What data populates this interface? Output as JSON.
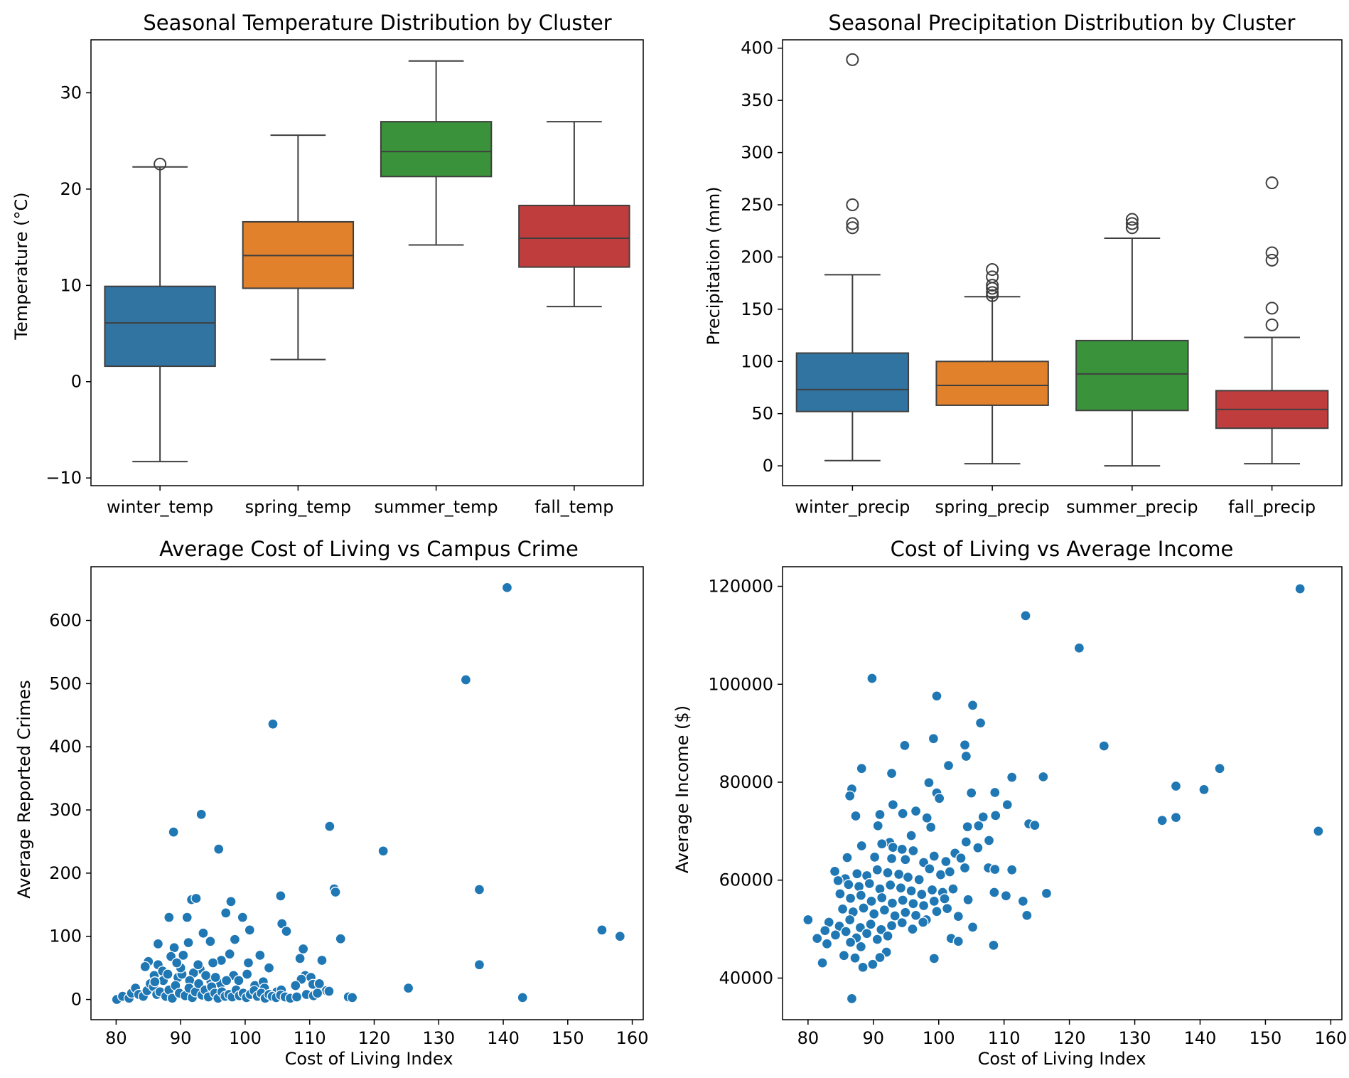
{
  "chart_data": [
    {
      "type": "box",
      "title": "Seasonal Temperature Distribution by Cluster",
      "xlabel": "",
      "ylabel": "Temperature (°C)",
      "ylim": [
        -10.8,
        35.5
      ],
      "yticks": [
        -10,
        0,
        10,
        20,
        30
      ],
      "ytick_labels": [
        "−10",
        "0",
        "10",
        "20",
        "30"
      ],
      "categories": [
        "winter_temp",
        "spring_temp",
        "summer_temp",
        "fall_temp"
      ],
      "colors": [
        "#3274a1",
        "#e1812c",
        "#3a923a",
        "#c03d3e"
      ],
      "boxes": [
        {
          "whislo": -8.3,
          "q1": 1.6,
          "med": 6.1,
          "q3": 9.9,
          "whishi": 22.3,
          "fliers": [
            22.6
          ]
        },
        {
          "whislo": 2.3,
          "q1": 9.7,
          "med": 13.1,
          "q3": 16.6,
          "whishi": 25.6,
          "fliers": []
        },
        {
          "whislo": 14.2,
          "q1": 21.3,
          "med": 23.9,
          "q3": 27.0,
          "whishi": 33.3,
          "fliers": []
        },
        {
          "whislo": 7.8,
          "q1": 11.9,
          "med": 14.9,
          "q3": 18.3,
          "whishi": 27.0,
          "fliers": []
        }
      ]
    },
    {
      "type": "box",
      "title": "Seasonal Precipitation Distribution by Cluster",
      "xlabel": "",
      "ylabel": "Precipitation (mm)",
      "ylim": [
        -19,
        408
      ],
      "yticks": [
        0,
        50,
        100,
        150,
        200,
        250,
        300,
        350,
        400
      ],
      "ytick_labels": [
        "0",
        "50",
        "100",
        "150",
        "200",
        "250",
        "300",
        "350",
        "400"
      ],
      "categories": [
        "winter_precip",
        "spring_precip",
        "summer_precip",
        "fall_precip"
      ],
      "colors": [
        "#3274a1",
        "#e1812c",
        "#3a923a",
        "#c03d3e"
      ],
      "boxes": [
        {
          "whislo": 5,
          "q1": 52,
          "med": 73,
          "q3": 108,
          "whishi": 183,
          "fliers": [
            228,
            232,
            250,
            389
          ]
        },
        {
          "whislo": 2,
          "q1": 58,
          "med": 77,
          "q3": 100,
          "whishi": 162,
          "fliers": [
            163,
            166,
            170,
            173,
            181,
            188
          ]
        },
        {
          "whislo": 0,
          "q1": 53,
          "med": 88,
          "q3": 120,
          "whishi": 218,
          "fliers": [
            228,
            232,
            236
          ]
        },
        {
          "whislo": 2,
          "q1": 36,
          "med": 54,
          "q3": 72,
          "whishi": 123,
          "fliers": [
            135,
            151,
            197,
            204,
            271
          ]
        }
      ]
    },
    {
      "type": "scatter",
      "title": "Average Cost of Living vs Campus Crime",
      "xlabel": "Cost of Living Index",
      "ylabel": "Average Reported Crimes",
      "xlim": [
        76.1,
        161.7
      ],
      "ylim": [
        -32,
        685
      ],
      "xticks": [
        80,
        90,
        100,
        110,
        120,
        130,
        140,
        150,
        160
      ],
      "yticks": [
        0,
        100,
        200,
        300,
        400,
        500,
        600
      ],
      "color": "#1f77b4",
      "points": [
        [
          140.6,
          652
        ],
        [
          134.2,
          506
        ],
        [
          104.3,
          436
        ],
        [
          113.1,
          274
        ],
        [
          93.2,
          293
        ],
        [
          88.9,
          265
        ],
        [
          95.9,
          238
        ],
        [
          121.4,
          235
        ],
        [
          136.3,
          174
        ],
        [
          113.8,
          175
        ],
        [
          114.0,
          170
        ],
        [
          105.5,
          164
        ],
        [
          91.7,
          158
        ],
        [
          92.4,
          160
        ],
        [
          97.8,
          155
        ],
        [
          88.2,
          130
        ],
        [
          91.0,
          130
        ],
        [
          99.6,
          130
        ],
        [
          97.0,
          137
        ],
        [
          105.7,
          120
        ],
        [
          100.7,
          110
        ],
        [
          106.4,
          108
        ],
        [
          155.3,
          110
        ],
        [
          158.1,
          100
        ],
        [
          114.8,
          96
        ],
        [
          93.5,
          105
        ],
        [
          94.6,
          92
        ],
        [
          86.5,
          88
        ],
        [
          109.0,
          80
        ],
        [
          89.0,
          82
        ],
        [
          91.2,
          90
        ],
        [
          96.3,
          62
        ],
        [
          100.5,
          58
        ],
        [
          102.3,
          70
        ],
        [
          103.7,
          50
        ],
        [
          108.5,
          65
        ],
        [
          111.9,
          62
        ],
        [
          85.0,
          60
        ],
        [
          86.5,
          55
        ],
        [
          93.0,
          48
        ],
        [
          95.0,
          58
        ],
        [
          136.3,
          55
        ],
        [
          98.4,
          95
        ],
        [
          88.5,
          68
        ],
        [
          90.4,
          70
        ],
        [
          97.6,
          72
        ],
        [
          92.0,
          42
        ],
        [
          98.2,
          38
        ],
        [
          100.3,
          40
        ],
        [
          109.3,
          38
        ],
        [
          108.7,
          32
        ],
        [
          110.2,
          35
        ],
        [
          110.5,
          24
        ],
        [
          107.8,
          22
        ],
        [
          111.5,
          25
        ],
        [
          84.5,
          52
        ],
        [
          85.9,
          38
        ],
        [
          87.2,
          45
        ],
        [
          89.6,
          35
        ],
        [
          91.4,
          30
        ],
        [
          94.7,
          28
        ],
        [
          96.2,
          25
        ],
        [
          99.0,
          30
        ],
        [
          101.5,
          22
        ],
        [
          102.8,
          28
        ],
        [
          103.0,
          18
        ],
        [
          104.9,
          12
        ],
        [
          105.6,
          15
        ],
        [
          112.6,
          14
        ],
        [
          113.0,
          13
        ],
        [
          125.3,
          18
        ],
        [
          116.0,
          4
        ],
        [
          116.6,
          3
        ],
        [
          143.0,
          3
        ],
        [
          80.1,
          0
        ],
        [
          81.0,
          5
        ],
        [
          82.0,
          2
        ],
        [
          82.4,
          10
        ],
        [
          83.0,
          18
        ],
        [
          83.5,
          8
        ],
        [
          84.2,
          5
        ],
        [
          84.8,
          14
        ],
        [
          85.3,
          25
        ],
        [
          85.8,
          20
        ],
        [
          86.3,
          8
        ],
        [
          86.8,
          12
        ],
        [
          87.3,
          30
        ],
        [
          87.7,
          5
        ],
        [
          88.2,
          15
        ],
        [
          88.7,
          2
        ],
        [
          89.2,
          22
        ],
        [
          89.8,
          10
        ],
        [
          90.2,
          40
        ],
        [
          90.7,
          6
        ],
        [
          91.3,
          18
        ],
        [
          91.8,
          3
        ],
        [
          92.3,
          12
        ],
        [
          92.8,
          25
        ],
        [
          93.3,
          7
        ],
        [
          93.8,
          15
        ],
        [
          94.3,
          4
        ],
        [
          94.8,
          20
        ],
        [
          95.3,
          10
        ],
        [
          95.8,
          2
        ],
        [
          96.4,
          12
        ],
        [
          96.9,
          5
        ],
        [
          97.5,
          8
        ],
        [
          98.0,
          4
        ],
        [
          98.6,
          15
        ],
        [
          99.1,
          6
        ],
        [
          99.7,
          10
        ],
        [
          100.2,
          3
        ],
        [
          100.8,
          8
        ],
        [
          101.4,
          14
        ],
        [
          101.9,
          5
        ],
        [
          102.5,
          10
        ],
        [
          103.1,
          2
        ],
        [
          103.7,
          8
        ],
        [
          104.2,
          5
        ],
        [
          104.8,
          3
        ],
        [
          105.5,
          7
        ],
        [
          106.2,
          4
        ],
        [
          107.0,
          2
        ],
        [
          108.0,
          4
        ],
        [
          109.5,
          8
        ],
        [
          110.6,
          6
        ],
        [
          111.2,
          10
        ],
        [
          90.0,
          50
        ],
        [
          92.7,
          55
        ],
        [
          95.4,
          35
        ],
        [
          97.1,
          30
        ],
        [
          86.0,
          28
        ],
        [
          88.0,
          40
        ],
        [
          89.4,
          58
        ],
        [
          93.9,
          38
        ]
      ]
    },
    {
      "type": "scatter",
      "title": "Cost of Living vs Average Income",
      "xlabel": "Cost of Living Index",
      "ylabel": "Average Income ($)",
      "xlim": [
        76.1,
        161.7
      ],
      "ylim": [
        31500,
        124000
      ],
      "xticks": [
        80,
        90,
        100,
        110,
        120,
        130,
        140,
        150,
        160
      ],
      "yticks": [
        40000,
        60000,
        80000,
        100000,
        120000
      ],
      "color": "#1f77b4",
      "points": [
        [
          155.3,
          119500
        ],
        [
          113.3,
          114000
        ],
        [
          121.5,
          107400
        ],
        [
          89.8,
          101200
        ],
        [
          99.7,
          97600
        ],
        [
          105.2,
          95700
        ],
        [
          106.4,
          92100
        ],
        [
          99.2,
          88900
        ],
        [
          125.3,
          87400
        ],
        [
          94.8,
          87500
        ],
        [
          104.0,
          87600
        ],
        [
          104.2,
          85300
        ],
        [
          101.5,
          83400
        ],
        [
          88.2,
          82800
        ],
        [
          143.0,
          82800
        ],
        [
          92.8,
          81800
        ],
        [
          111.2,
          81000
        ],
        [
          116.0,
          81100
        ],
        [
          98.5,
          79900
        ],
        [
          136.3,
          79200
        ],
        [
          86.7,
          78600
        ],
        [
          140.6,
          78500
        ],
        [
          99.7,
          77800
        ],
        [
          105.0,
          77800
        ],
        [
          108.6,
          77900
        ],
        [
          86.4,
          77200
        ],
        [
          100.1,
          76700
        ],
        [
          110.5,
          75400
        ],
        [
          93.0,
          75400
        ],
        [
          96.5,
          74100
        ],
        [
          94.5,
          73600
        ],
        [
          87.3,
          73100
        ],
        [
          91.0,
          73400
        ],
        [
          98.2,
          72700
        ],
        [
          106.8,
          72900
        ],
        [
          108.7,
          73200
        ],
        [
          134.2,
          72200
        ],
        [
          136.3,
          72800
        ],
        [
          113.8,
          71500
        ],
        [
          114.7,
          71200
        ],
        [
          90.7,
          71100
        ],
        [
          98.8,
          70800
        ],
        [
          104.4,
          70900
        ],
        [
          106.1,
          71100
        ],
        [
          158.1,
          70000
        ],
        [
          95.8,
          69100
        ],
        [
          92.5,
          67700
        ],
        [
          88.2,
          67000
        ],
        [
          91.3,
          67400
        ],
        [
          93.0,
          66700
        ],
        [
          94.4,
          66300
        ],
        [
          96.1,
          66000
        ],
        [
          104.2,
          67800
        ],
        [
          106.0,
          66600
        ],
        [
          107.7,
          68100
        ],
        [
          102.5,
          65500
        ],
        [
          90.2,
          64700
        ],
        [
          92.8,
          64400
        ],
        [
          94.9,
          64200
        ],
        [
          97.7,
          63600
        ],
        [
          99.3,
          64900
        ],
        [
          101.1,
          63800
        ],
        [
          103.4,
          64500
        ],
        [
          86.0,
          64600
        ],
        [
          84.1,
          61800
        ],
        [
          85.7,
          60300
        ],
        [
          87.5,
          61300
        ],
        [
          89.0,
          60900
        ],
        [
          90.6,
          62100
        ],
        [
          92.2,
          61500
        ],
        [
          93.9,
          61200
        ],
        [
          95.3,
          60600
        ],
        [
          97.0,
          60100
        ],
        [
          98.6,
          62300
        ],
        [
          100.3,
          61100
        ],
        [
          101.7,
          61700
        ],
        [
          104.0,
          62500
        ],
        [
          107.6,
          62500
        ],
        [
          108.6,
          62200
        ],
        [
          111.2,
          62100
        ],
        [
          84.6,
          59900
        ],
        [
          86.2,
          59100
        ],
        [
          87.8,
          58700
        ],
        [
          89.4,
          59300
        ],
        [
          91.0,
          58200
        ],
        [
          92.6,
          59000
        ],
        [
          94.2,
          58400
        ],
        [
          95.8,
          57800
        ],
        [
          97.4,
          57100
        ],
        [
          99.0,
          58000
        ],
        [
          100.6,
          57500
        ],
        [
          102.2,
          58200
        ],
        [
          84.9,
          57200
        ],
        [
          86.5,
          56300
        ],
        [
          88.1,
          56900
        ],
        [
          89.7,
          55700
        ],
        [
          91.3,
          56400
        ],
        [
          92.9,
          55300
        ],
        [
          94.5,
          55900
        ],
        [
          96.1,
          55200
        ],
        [
          97.7,
          54800
        ],
        [
          99.3,
          55700
        ],
        [
          100.9,
          56200
        ],
        [
          104.5,
          56000
        ],
        [
          108.5,
          57500
        ],
        [
          110.3,
          56800
        ],
        [
          112.9,
          55700
        ],
        [
          116.5,
          57300
        ],
        [
          85.3,
          54100
        ],
        [
          86.9,
          53500
        ],
        [
          88.5,
          54300
        ],
        [
          90.1,
          53100
        ],
        [
          91.7,
          53900
        ],
        [
          93.3,
          52700
        ],
        [
          94.9,
          53400
        ],
        [
          96.5,
          52800
        ],
        [
          98.1,
          51900
        ],
        [
          99.7,
          53600
        ],
        [
          101.3,
          54200
        ],
        [
          113.5,
          52800
        ],
        [
          103.0,
          52600
        ],
        [
          83.2,
          51400
        ],
        [
          84.8,
          50600
        ],
        [
          86.4,
          51900
        ],
        [
          88.0,
          50300
        ],
        [
          89.6,
          51000
        ],
        [
          91.2,
          49900
        ],
        [
          92.8,
          50700
        ],
        [
          94.4,
          51300
        ],
        [
          96.0,
          50000
        ],
        [
          97.6,
          51400
        ],
        [
          105.2,
          50400
        ],
        [
          82.6,
          49700
        ],
        [
          84.2,
          48800
        ],
        [
          85.8,
          49500
        ],
        [
          87.4,
          48200
        ],
        [
          89.0,
          49100
        ],
        [
          90.6,
          47900
        ],
        [
          92.2,
          48600
        ],
        [
          101.9,
          48100
        ],
        [
          103.0,
          47500
        ],
        [
          80.0,
          51900
        ],
        [
          81.4,
          48100
        ],
        [
          82.9,
          47000
        ],
        [
          86.5,
          47300
        ],
        [
          88.1,
          46400
        ],
        [
          108.4,
          46700
        ],
        [
          92.0,
          45300
        ],
        [
          85.5,
          44600
        ],
        [
          87.2,
          44100
        ],
        [
          91.0,
          44200
        ],
        [
          99.3,
          44000
        ],
        [
          82.2,
          43100
        ],
        [
          88.4,
          42200
        ],
        [
          89.9,
          42800
        ],
        [
          86.7,
          35800
        ]
      ]
    }
  ]
}
